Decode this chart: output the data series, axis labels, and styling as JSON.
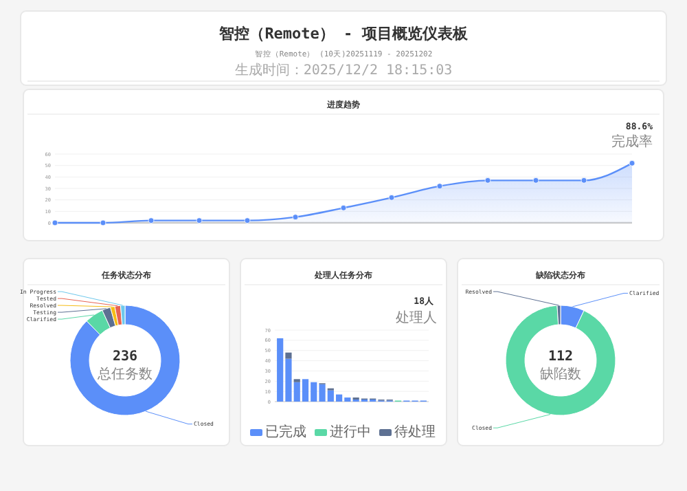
{
  "chart_data": [
    {
      "type": "other",
      "title": "智控（Remote） - 项目概览仪表板",
      "subtitle": "智控（Remote） (10天)20251119 - 20251202",
      "annotations": [
        "生成时间：2025/12/2 18:15:03"
      ]
    },
    {
      "type": "area",
      "title": "进度趋势",
      "categories": [
        null,
        null,
        null,
        null,
        null,
        null,
        null,
        null,
        null,
        null,
        null,
        null,
        null
      ],
      "series": [
        {
          "color": "#5b8ff9",
          "values": [
            0,
            0,
            2,
            2,
            2,
            5,
            13,
            22,
            32,
            37,
            37,
            37,
            52
          ]
        }
      ],
      "ylim": [
        0,
        60
      ],
      "yticks": [
        0,
        10,
        20,
        30,
        40,
        50,
        60
      ],
      "grid": "y",
      "marker": "circle",
      "annotations": [
        "88.6%",
        "完成率"
      ]
    },
    {
      "type": "donut",
      "title": "任务状态分布",
      "categories": [
        "Closed",
        "Clarified",
        "Testing",
        "Resolved",
        "Tested",
        "In Progress"
      ],
      "values": [
        87.7,
        5.5,
        2.5,
        1.3,
        1.7,
        1.3
      ],
      "colors": [
        "#5b8ff9",
        "#5ad8a6",
        "#5d7092",
        "#f6bd16",
        "#e86452",
        "#6dc8ec"
      ],
      "annotations": [
        "236",
        "总任务数"
      ]
    },
    {
      "type": "bar",
      "title": "处理人任务分布",
      "stacked": true,
      "categories": [
        null,
        null,
        null,
        null,
        null,
        null,
        null,
        null,
        null,
        null,
        null,
        null,
        null,
        null,
        null,
        null,
        null,
        null
      ],
      "series": [
        {
          "name": "已完成",
          "color": "#5b8ff9",
          "values": [
            62,
            42,
            19,
            22,
            19,
            17,
            11,
            7,
            4,
            2,
            2,
            2,
            1,
            1,
            0,
            1,
            1,
            1
          ]
        },
        {
          "name": "进行中",
          "color": "#5ad8a6",
          "values": [
            0,
            0,
            0,
            0,
            0,
            0,
            0,
            0,
            0,
            0,
            0,
            0,
            0,
            0,
            1,
            0,
            0,
            0
          ]
        },
        {
          "name": "待处理",
          "color": "#5d7092",
          "values": [
            0,
            6,
            3,
            0,
            0,
            1,
            2,
            0,
            0,
            2,
            1,
            1,
            1,
            1,
            0,
            0,
            0,
            0
          ]
        }
      ],
      "ylim": [
        0,
        70
      ],
      "yticks": [
        0,
        10,
        20,
        30,
        40,
        50,
        60,
        70
      ],
      "grid": "y",
      "legend": "bottom",
      "annotations": [
        "18人",
        "处理人"
      ]
    },
    {
      "type": "donut",
      "title": "缺陷状态分布",
      "categories": [
        "Clarified",
        "Closed",
        "Resolved"
      ],
      "values": [
        7,
        92,
        1
      ],
      "colors": [
        "#5b8ff9",
        "#5ad8a6",
        "#5d7092"
      ],
      "annotations": [
        "112",
        "缺陷数"
      ]
    }
  ]
}
